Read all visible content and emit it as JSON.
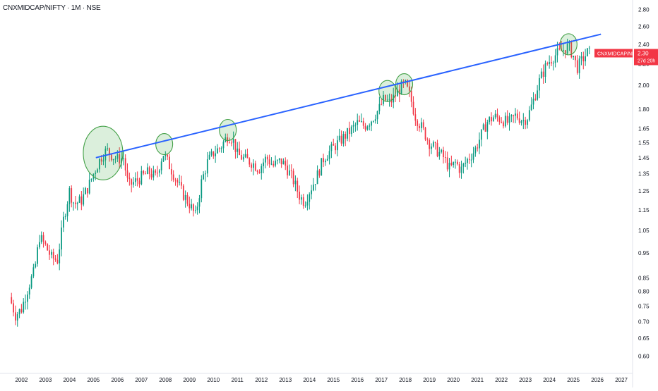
{
  "header": {
    "title": "CNXMIDCAP/NIFTY · 1M · NSE"
  },
  "price_label": {
    "symbol": "CNXMIDCAP/NIFTY",
    "value": "2.30",
    "countdown": "27d 20h",
    "color": "#f23645"
  },
  "chart_data": {
    "type": "candlestick",
    "title": "CNXMIDCAP/NIFTY · 1M · NSE",
    "xlabel": "",
    "ylabel": "",
    "y_scale": "log",
    "ylim": [
      0.57,
      2.85
    ],
    "xlim": [
      2001.4,
      2027.35
    ],
    "y_ticks": [
      "2.80",
      "2.60",
      "2.40",
      "2.20",
      "2.00",
      "1.80",
      "1.65",
      "1.55",
      "1.45",
      "1.35",
      "1.25",
      "1.15",
      "1.05",
      "0.95",
      "0.85",
      "0.80",
      "0.75",
      "0.70",
      "0.65",
      "0.60"
    ],
    "x_ticks": [
      "2002",
      "2003",
      "2004",
      "2005",
      "2006",
      "2007",
      "2008",
      "2009",
      "2010",
      "2011",
      "2012",
      "2013",
      "2014",
      "2015",
      "2016",
      "2017",
      "2018",
      "2019",
      "2020",
      "2021",
      "2022",
      "2023",
      "2024",
      "2025",
      "2026",
      "2027"
    ],
    "up_color": "#089981",
    "down_color": "#f23645",
    "grid": false,
    "series": [
      {
        "name": "CNXMIDCAP/NIFTY",
        "close_path": [
          [
            2001.5,
            0.78
          ],
          [
            2001.75,
            0.72
          ],
          [
            2002.0,
            0.74
          ],
          [
            2002.3,
            0.82
          ],
          [
            2002.55,
            0.88
          ],
          [
            2002.75,
            1.02
          ],
          [
            2003.0,
            0.98
          ],
          [
            2003.25,
            0.93
          ],
          [
            2003.5,
            0.92
          ],
          [
            2003.75,
            1.1
          ],
          [
            2004.0,
            1.25
          ],
          [
            2004.2,
            1.18
          ],
          [
            2004.5,
            1.2
          ],
          [
            2004.8,
            1.28
          ],
          [
            2005.0,
            1.35
          ],
          [
            2005.3,
            1.45
          ],
          [
            2005.55,
            1.5
          ],
          [
            2005.8,
            1.46
          ],
          [
            2006.0,
            1.44
          ],
          [
            2006.25,
            1.45
          ],
          [
            2006.45,
            1.28
          ],
          [
            2006.7,
            1.3
          ],
          [
            2007.0,
            1.33
          ],
          [
            2007.3,
            1.36
          ],
          [
            2007.6,
            1.33
          ],
          [
            2007.9,
            1.48
          ],
          [
            2008.1,
            1.42
          ],
          [
            2008.4,
            1.33
          ],
          [
            2008.7,
            1.24
          ],
          [
            2009.0,
            1.18
          ],
          [
            2009.25,
            1.12
          ],
          [
            2009.5,
            1.3
          ],
          [
            2009.75,
            1.42
          ],
          [
            2010.0,
            1.48
          ],
          [
            2010.3,
            1.52
          ],
          [
            2010.6,
            1.6
          ],
          [
            2010.8,
            1.58
          ],
          [
            2011.0,
            1.47
          ],
          [
            2011.3,
            1.44
          ],
          [
            2011.6,
            1.42
          ],
          [
            2011.9,
            1.38
          ],
          [
            2012.2,
            1.45
          ],
          [
            2012.5,
            1.4
          ],
          [
            2012.8,
            1.43
          ],
          [
            2013.0,
            1.4
          ],
          [
            2013.3,
            1.32
          ],
          [
            2013.6,
            1.22
          ],
          [
            2013.8,
            1.19
          ],
          [
            2014.0,
            1.25
          ],
          [
            2014.3,
            1.33
          ],
          [
            2014.6,
            1.45
          ],
          [
            2014.9,
            1.5
          ],
          [
            2015.2,
            1.55
          ],
          [
            2015.5,
            1.6
          ],
          [
            2015.8,
            1.65
          ],
          [
            2016.0,
            1.69
          ],
          [
            2016.3,
            1.67
          ],
          [
            2016.6,
            1.72
          ],
          [
            2016.9,
            1.8
          ],
          [
            2017.1,
            1.88
          ],
          [
            2017.35,
            1.85
          ],
          [
            2017.6,
            1.92
          ],
          [
            2017.8,
            1.98
          ],
          [
            2018.0,
            2.0
          ],
          [
            2018.2,
            1.9
          ],
          [
            2018.4,
            1.75
          ],
          [
            2018.7,
            1.65
          ],
          [
            2019.0,
            1.55
          ],
          [
            2019.3,
            1.5
          ],
          [
            2019.6,
            1.45
          ],
          [
            2019.85,
            1.38
          ],
          [
            2020.1,
            1.42
          ],
          [
            2020.3,
            1.37
          ],
          [
            2020.6,
            1.44
          ],
          [
            2020.9,
            1.5
          ],
          [
            2021.1,
            1.58
          ],
          [
            2021.4,
            1.7
          ],
          [
            2021.7,
            1.74
          ],
          [
            2022.0,
            1.72
          ],
          [
            2022.3,
            1.69
          ],
          [
            2022.6,
            1.75
          ],
          [
            2022.9,
            1.71
          ],
          [
            2023.1,
            1.74
          ],
          [
            2023.3,
            1.85
          ],
          [
            2023.6,
            2.05
          ],
          [
            2023.9,
            2.2
          ],
          [
            2024.2,
            2.28
          ],
          [
            2024.5,
            2.33
          ],
          [
            2024.8,
            2.38
          ],
          [
            2025.0,
            2.28
          ],
          [
            2025.15,
            2.16
          ],
          [
            2025.4,
            2.25
          ],
          [
            2025.6,
            2.32
          ],
          [
            2025.72,
            2.3
          ]
        ]
      }
    ],
    "trendline": {
      "from": [
        2005.1,
        1.45
      ],
      "to": [
        2026.15,
        2.51
      ],
      "color": "#2962ff"
    },
    "highlight_circles": [
      {
        "x": 2005.4,
        "y": 1.48
      },
      {
        "x": 2007.95,
        "y": 1.54
      },
      {
        "x": 2010.6,
        "y": 1.64
      },
      {
        "x": 2017.25,
        "y": 1.95
      },
      {
        "x": 2017.95,
        "y": 2.01
      },
      {
        "x": 2024.8,
        "y": 2.4
      }
    ],
    "last_price": 2.3
  }
}
